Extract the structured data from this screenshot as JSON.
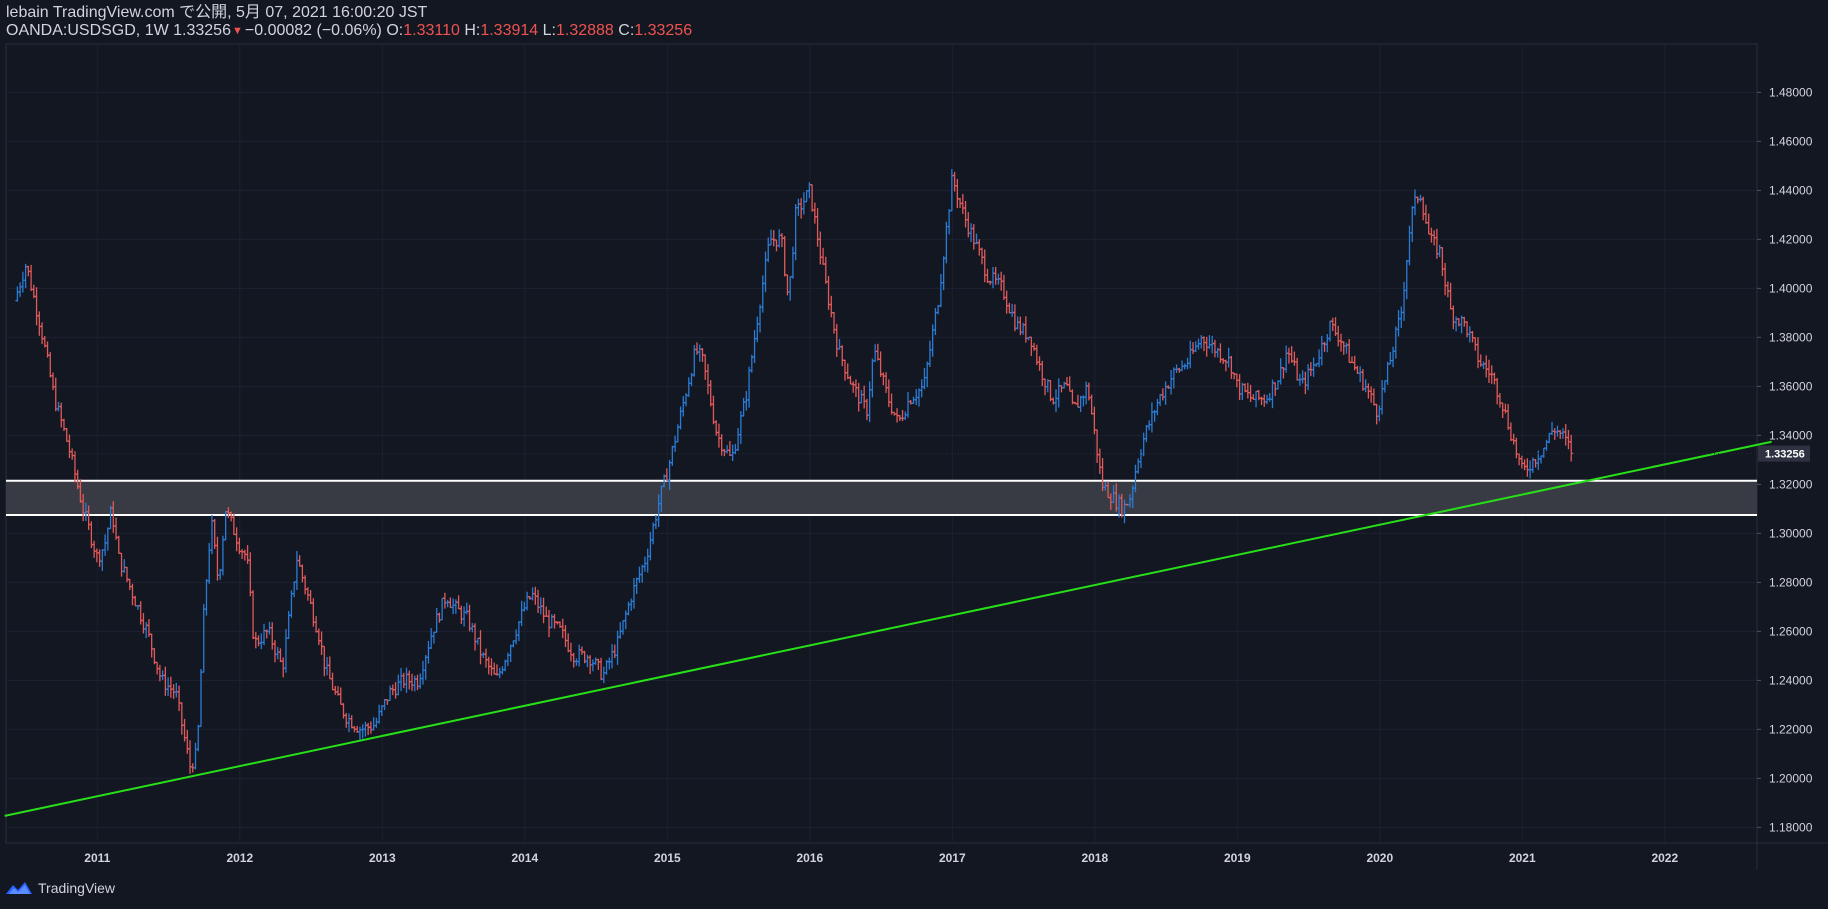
{
  "header": {
    "published": "lebain TradingView.com で公開, 5月 07, 2021 16:00:20 JST",
    "symbol": "OANDA:USDSGD, 1W",
    "last": "1.33256",
    "change": "−0.00082 (−0.06%)",
    "o_label": "O:",
    "o_value": "1.33110",
    "h_label": "H:",
    "h_value": "1.33914",
    "l_label": "L:",
    "l_value": "1.32888",
    "c_label": "C:",
    "c_value": "1.33256"
  },
  "footer": {
    "brand": "TradingView"
  },
  "colors": {
    "background": "#131722",
    "up": "#2a7bd4",
    "down": "#e05a5a",
    "trendline": "#27e018",
    "zone_fill": "#3a3d46",
    "zone_line": "#ffffff",
    "grid": "#1d2130",
    "axis_text": "#d1d4dc"
  },
  "chart_data": {
    "type": "line",
    "style": "weekly OHLC bars",
    "title": "OANDA:USDSGD, 1W",
    "ylim": [
      1.17,
      1.5
    ],
    "xlim": [
      2010.4,
      2022.75
    ],
    "y_ticks": [
      "1.18000",
      "1.20000",
      "1.22000",
      "1.24000",
      "1.26000",
      "1.28000",
      "1.30000",
      "1.32000",
      "1.34000",
      "1.36000",
      "1.38000",
      "1.40000",
      "1.42000",
      "1.44000",
      "1.46000",
      "1.48000"
    ],
    "x_ticks": [
      "2011",
      "2012",
      "2013",
      "2014",
      "2015",
      "2016",
      "2017",
      "2018",
      "2019",
      "2020",
      "2021",
      "2022"
    ],
    "price": [
      [
        2010.42,
        1.395
      ],
      [
        2010.5,
        1.41
      ],
      [
        2010.6,
        1.385
      ],
      [
        2010.7,
        1.355
      ],
      [
        2010.8,
        1.335
      ],
      [
        2010.9,
        1.31
      ],
      [
        2011.0,
        1.29
      ],
      [
        2011.05,
        1.295
      ],
      [
        2011.1,
        1.31
      ],
      [
        2011.15,
        1.29
      ],
      [
        2011.25,
        1.275
      ],
      [
        2011.35,
        1.26
      ],
      [
        2011.45,
        1.24
      ],
      [
        2011.55,
        1.235
      ],
      [
        2011.6,
        1.22
      ],
      [
        2011.65,
        1.205
      ],
      [
        2011.7,
        1.21
      ],
      [
        2011.75,
        1.27
      ],
      [
        2011.8,
        1.305
      ],
      [
        2011.85,
        1.28
      ],
      [
        2011.9,
        1.31
      ],
      [
        2012.0,
        1.295
      ],
      [
        2012.05,
        1.29
      ],
      [
        2012.1,
        1.255
      ],
      [
        2012.2,
        1.26
      ],
      [
        2012.3,
        1.245
      ],
      [
        2012.4,
        1.29
      ],
      [
        2012.5,
        1.27
      ],
      [
        2012.55,
        1.26
      ],
      [
        2012.6,
        1.245
      ],
      [
        2012.7,
        1.23
      ],
      [
        2012.75,
        1.225
      ],
      [
        2012.85,
        1.22
      ],
      [
        2012.95,
        1.222
      ],
      [
        2013.05,
        1.235
      ],
      [
        2013.15,
        1.24
      ],
      [
        2013.25,
        1.24
      ],
      [
        2013.35,
        1.26
      ],
      [
        2013.45,
        1.275
      ],
      [
        2013.5,
        1.27
      ],
      [
        2013.6,
        1.265
      ],
      [
        2013.7,
        1.25
      ],
      [
        2013.8,
        1.24
      ],
      [
        2013.9,
        1.255
      ],
      [
        2014.0,
        1.27
      ],
      [
        2014.05,
        1.275
      ],
      [
        2014.15,
        1.265
      ],
      [
        2014.25,
        1.26
      ],
      [
        2014.35,
        1.25
      ],
      [
        2014.45,
        1.25
      ],
      [
        2014.55,
        1.242
      ],
      [
        2014.65,
        1.255
      ],
      [
        2014.75,
        1.275
      ],
      [
        2014.85,
        1.29
      ],
      [
        2014.95,
        1.315
      ],
      [
        2015.0,
        1.325
      ],
      [
        2015.1,
        1.35
      ],
      [
        2015.2,
        1.375
      ],
      [
        2015.25,
        1.37
      ],
      [
        2015.35,
        1.34
      ],
      [
        2015.45,
        1.33
      ],
      [
        2015.55,
        1.355
      ],
      [
        2015.65,
        1.395
      ],
      [
        2015.72,
        1.42
      ],
      [
        2015.8,
        1.42
      ],
      [
        2015.85,
        1.395
      ],
      [
        2015.9,
        1.43
      ],
      [
        2016.0,
        1.44
      ],
      [
        2016.1,
        1.405
      ],
      [
        2016.2,
        1.375
      ],
      [
        2016.3,
        1.36
      ],
      [
        2016.4,
        1.35
      ],
      [
        2016.45,
        1.375
      ],
      [
        2016.55,
        1.355
      ],
      [
        2016.62,
        1.345
      ],
      [
        2016.7,
        1.355
      ],
      [
        2016.8,
        1.36
      ],
      [
        2016.9,
        1.395
      ],
      [
        2016.95,
        1.42
      ],
      [
        2017.0,
        1.445
      ],
      [
        2017.08,
        1.43
      ],
      [
        2017.15,
        1.42
      ],
      [
        2017.25,
        1.405
      ],
      [
        2017.35,
        1.4
      ],
      [
        2017.45,
        1.385
      ],
      [
        2017.55,
        1.38
      ],
      [
        2017.6,
        1.37
      ],
      [
        2017.7,
        1.355
      ],
      [
        2017.8,
        1.36
      ],
      [
        2017.85,
        1.35
      ],
      [
        2017.95,
        1.36
      ],
      [
        2018.0,
        1.34
      ],
      [
        2018.05,
        1.32
      ],
      [
        2018.12,
        1.315
      ],
      [
        2018.2,
        1.31
      ],
      [
        2018.25,
        1.315
      ],
      [
        2018.3,
        1.33
      ],
      [
        2018.35,
        1.34
      ],
      [
        2018.45,
        1.355
      ],
      [
        2018.55,
        1.365
      ],
      [
        2018.65,
        1.37
      ],
      [
        2018.75,
        1.38
      ],
      [
        2018.85,
        1.375
      ],
      [
        2018.95,
        1.37
      ],
      [
        2019.0,
        1.36
      ],
      [
        2019.1,
        1.355
      ],
      [
        2019.2,
        1.355
      ],
      [
        2019.3,
        1.365
      ],
      [
        2019.35,
        1.375
      ],
      [
        2019.45,
        1.36
      ],
      [
        2019.55,
        1.37
      ],
      [
        2019.65,
        1.385
      ],
      [
        2019.72,
        1.38
      ],
      [
        2019.8,
        1.37
      ],
      [
        2019.9,
        1.36
      ],
      [
        2019.98,
        1.35
      ],
      [
        2020.05,
        1.365
      ],
      [
        2020.15,
        1.39
      ],
      [
        2020.22,
        1.43
      ],
      [
        2020.28,
        1.44
      ],
      [
        2020.35,
        1.42
      ],
      [
        2020.42,
        1.415
      ],
      [
        2020.5,
        1.39
      ],
      [
        2020.6,
        1.385
      ],
      [
        2020.7,
        1.37
      ],
      [
        2020.78,
        1.365
      ],
      [
        2020.85,
        1.355
      ],
      [
        2020.95,
        1.335
      ],
      [
        2021.0,
        1.325
      ],
      [
        2021.08,
        1.33
      ],
      [
        2021.15,
        1.335
      ],
      [
        2021.22,
        1.343
      ],
      [
        2021.28,
        1.34
      ],
      [
        2021.35,
        1.333
      ]
    ],
    "annotations": {
      "last_price_label": "1.33256",
      "support_zone": [
        1.3075,
        1.3215
      ],
      "trendline": [
        [
          2010.35,
          1.1847
        ],
        [
          2022.75,
          1.3374
        ]
      ]
    }
  }
}
